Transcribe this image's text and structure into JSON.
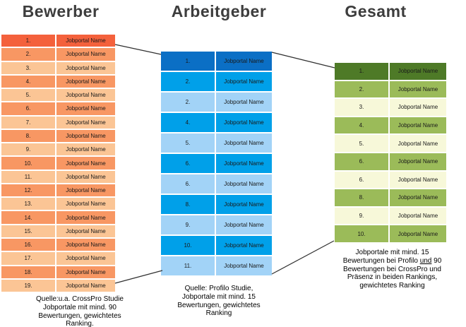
{
  "titles": {
    "bewerber": "Bewerber",
    "arbeitgeber": "Arbeitgeber",
    "gesamt": "Gesamt"
  },
  "tables": {
    "bewerber": {
      "colors": {
        "first": "#F4613C",
        "alt_a": "#F89763",
        "alt_b": "#FBC595"
      },
      "rows": [
        {
          "rank": "1.",
          "name": "Jobportal Name"
        },
        {
          "rank": "2.",
          "name": "Jobportal Name"
        },
        {
          "rank": "3.",
          "name": "Jobportal Name"
        },
        {
          "rank": "4.",
          "name": "Jobportal Name"
        },
        {
          "rank": "5.",
          "name": "Jobportal Name"
        },
        {
          "rank": "6.",
          "name": "Jobportal Name"
        },
        {
          "rank": "7.",
          "name": "Jobportal Name"
        },
        {
          "rank": "8.",
          "name": "Jobportal Name"
        },
        {
          "rank": "9.",
          "name": "Jobportal Name"
        },
        {
          "rank": "10.",
          "name": "Jobportal Name"
        },
        {
          "rank": "11.",
          "name": "Jobportal Name"
        },
        {
          "rank": "12.",
          "name": "Jobportal Name"
        },
        {
          "rank": "13.",
          "name": "Jobportal Name"
        },
        {
          "rank": "14.",
          "name": "Jobportal Name"
        },
        {
          "rank": "15.",
          "name": "Jobportal Name"
        },
        {
          "rank": "16.",
          "name": "Jobportal Name"
        },
        {
          "rank": "17.",
          "name": "Jobportal Name"
        },
        {
          "rank": "18.",
          "name": "Jobportal Name"
        },
        {
          "rank": "19.",
          "name": "Jobportal Name"
        }
      ]
    },
    "arbeitgeber": {
      "colors": {
        "first": "#0B6FC5",
        "alt_a": "#00A0E9",
        "alt_b": "#A2D3F7"
      },
      "rows": [
        {
          "rank": "1.",
          "name": "Jobportal Name"
        },
        {
          "rank": "2.",
          "name": "Jobportal Name"
        },
        {
          "rank": "2.",
          "name": "Jobportal Name"
        },
        {
          "rank": "4.",
          "name": "Jobportal Name"
        },
        {
          "rank": "5.",
          "name": "Jobportal Name"
        },
        {
          "rank": "6.",
          "name": "Jobportal Name"
        },
        {
          "rank": "6.",
          "name": "Jobportal Name"
        },
        {
          "rank": "8.",
          "name": "Jobportal Name"
        },
        {
          "rank": "9.",
          "name": "Jobportal Name"
        },
        {
          "rank": "10.",
          "name": "Jobportal Name"
        },
        {
          "rank": "11.",
          "name": "Jobportal Name"
        }
      ]
    },
    "gesamt": {
      "colors": {
        "first": "#4E7A27",
        "alt_a": "#9BBB59",
        "alt_b": "#F7F8D9"
      },
      "rows": [
        {
          "rank": "1.",
          "name": "Jobportal Name"
        },
        {
          "rank": "2.",
          "name": "Jobportal Name"
        },
        {
          "rank": "3.",
          "name": "Jobportal Name"
        },
        {
          "rank": "4.",
          "name": "Jobportal Name"
        },
        {
          "rank": "5.",
          "name": "Jobportal Name"
        },
        {
          "rank": "6.",
          "name": "Jobportal Name"
        },
        {
          "rank": "6.",
          "name": "Jobportal Name"
        },
        {
          "rank": "8.",
          "name": "Jobportal Name"
        },
        {
          "rank": "9.",
          "name": "Jobportal Name"
        },
        {
          "rank": "10.",
          "name": "Jobportal Name"
        }
      ]
    }
  },
  "footnotes": {
    "bewerber": {
      "line1": "Quelle:u.a. CrossPro Studie",
      "line2": "Jobportale mit mind. 90",
      "line3": "Bewertungen, gewichtetes",
      "line4": "Ranking."
    },
    "arbeitgeber": {
      "line1": "Quelle: Profilo Studie,",
      "line2": "Jobportale mit mind. 15",
      "line3": "Bewertungen, gewichtetes",
      "line4": "Ranking"
    },
    "gesamt": {
      "line1": "Jobportale mit mind. 15",
      "line2_pre": "Bewertungen bei Profilo ",
      "line2_underline": "und",
      "line2_post": " 90",
      "line3": "Bewertungen bei CrossPro und",
      "line4": "Präsenz in beiden Rankings,",
      "line5": "gewichtetes Ranking"
    }
  },
  "connector_color": "#303030"
}
